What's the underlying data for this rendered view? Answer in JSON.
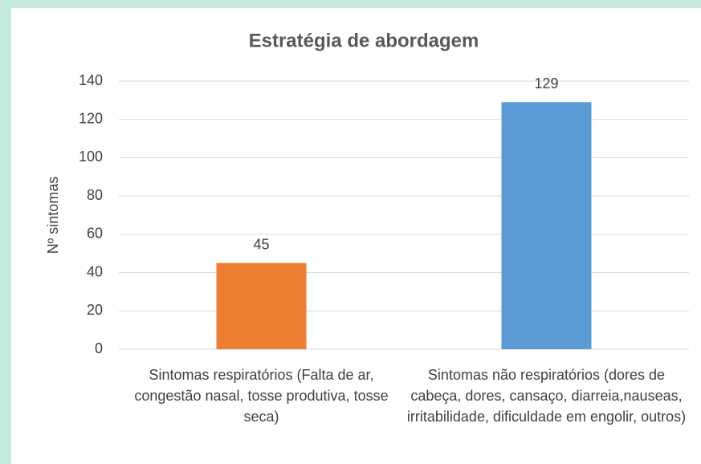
{
  "chart_data": {
    "type": "bar",
    "title": "Estratégia de abordagem",
    "y_label": "Nº sintomas",
    "categories": [
      "Sintomas respiratórios (Falta de ar, congestão nasal, tosse produtiva, tosse seca)",
      "Sintomas não respiratórios (dores de cabeça, dores, cansaço, diarreia,nauseas, irritabilidade, dificuldade em engolir, outros)"
    ],
    "values": [
      45,
      129
    ],
    "colors": [
      "#ed7d31",
      "#5b9bd5"
    ],
    "ylim": [
      0,
      140
    ],
    "yticks": [
      0,
      20,
      40,
      60,
      80,
      100,
      120,
      140
    ],
    "grid": true
  }
}
